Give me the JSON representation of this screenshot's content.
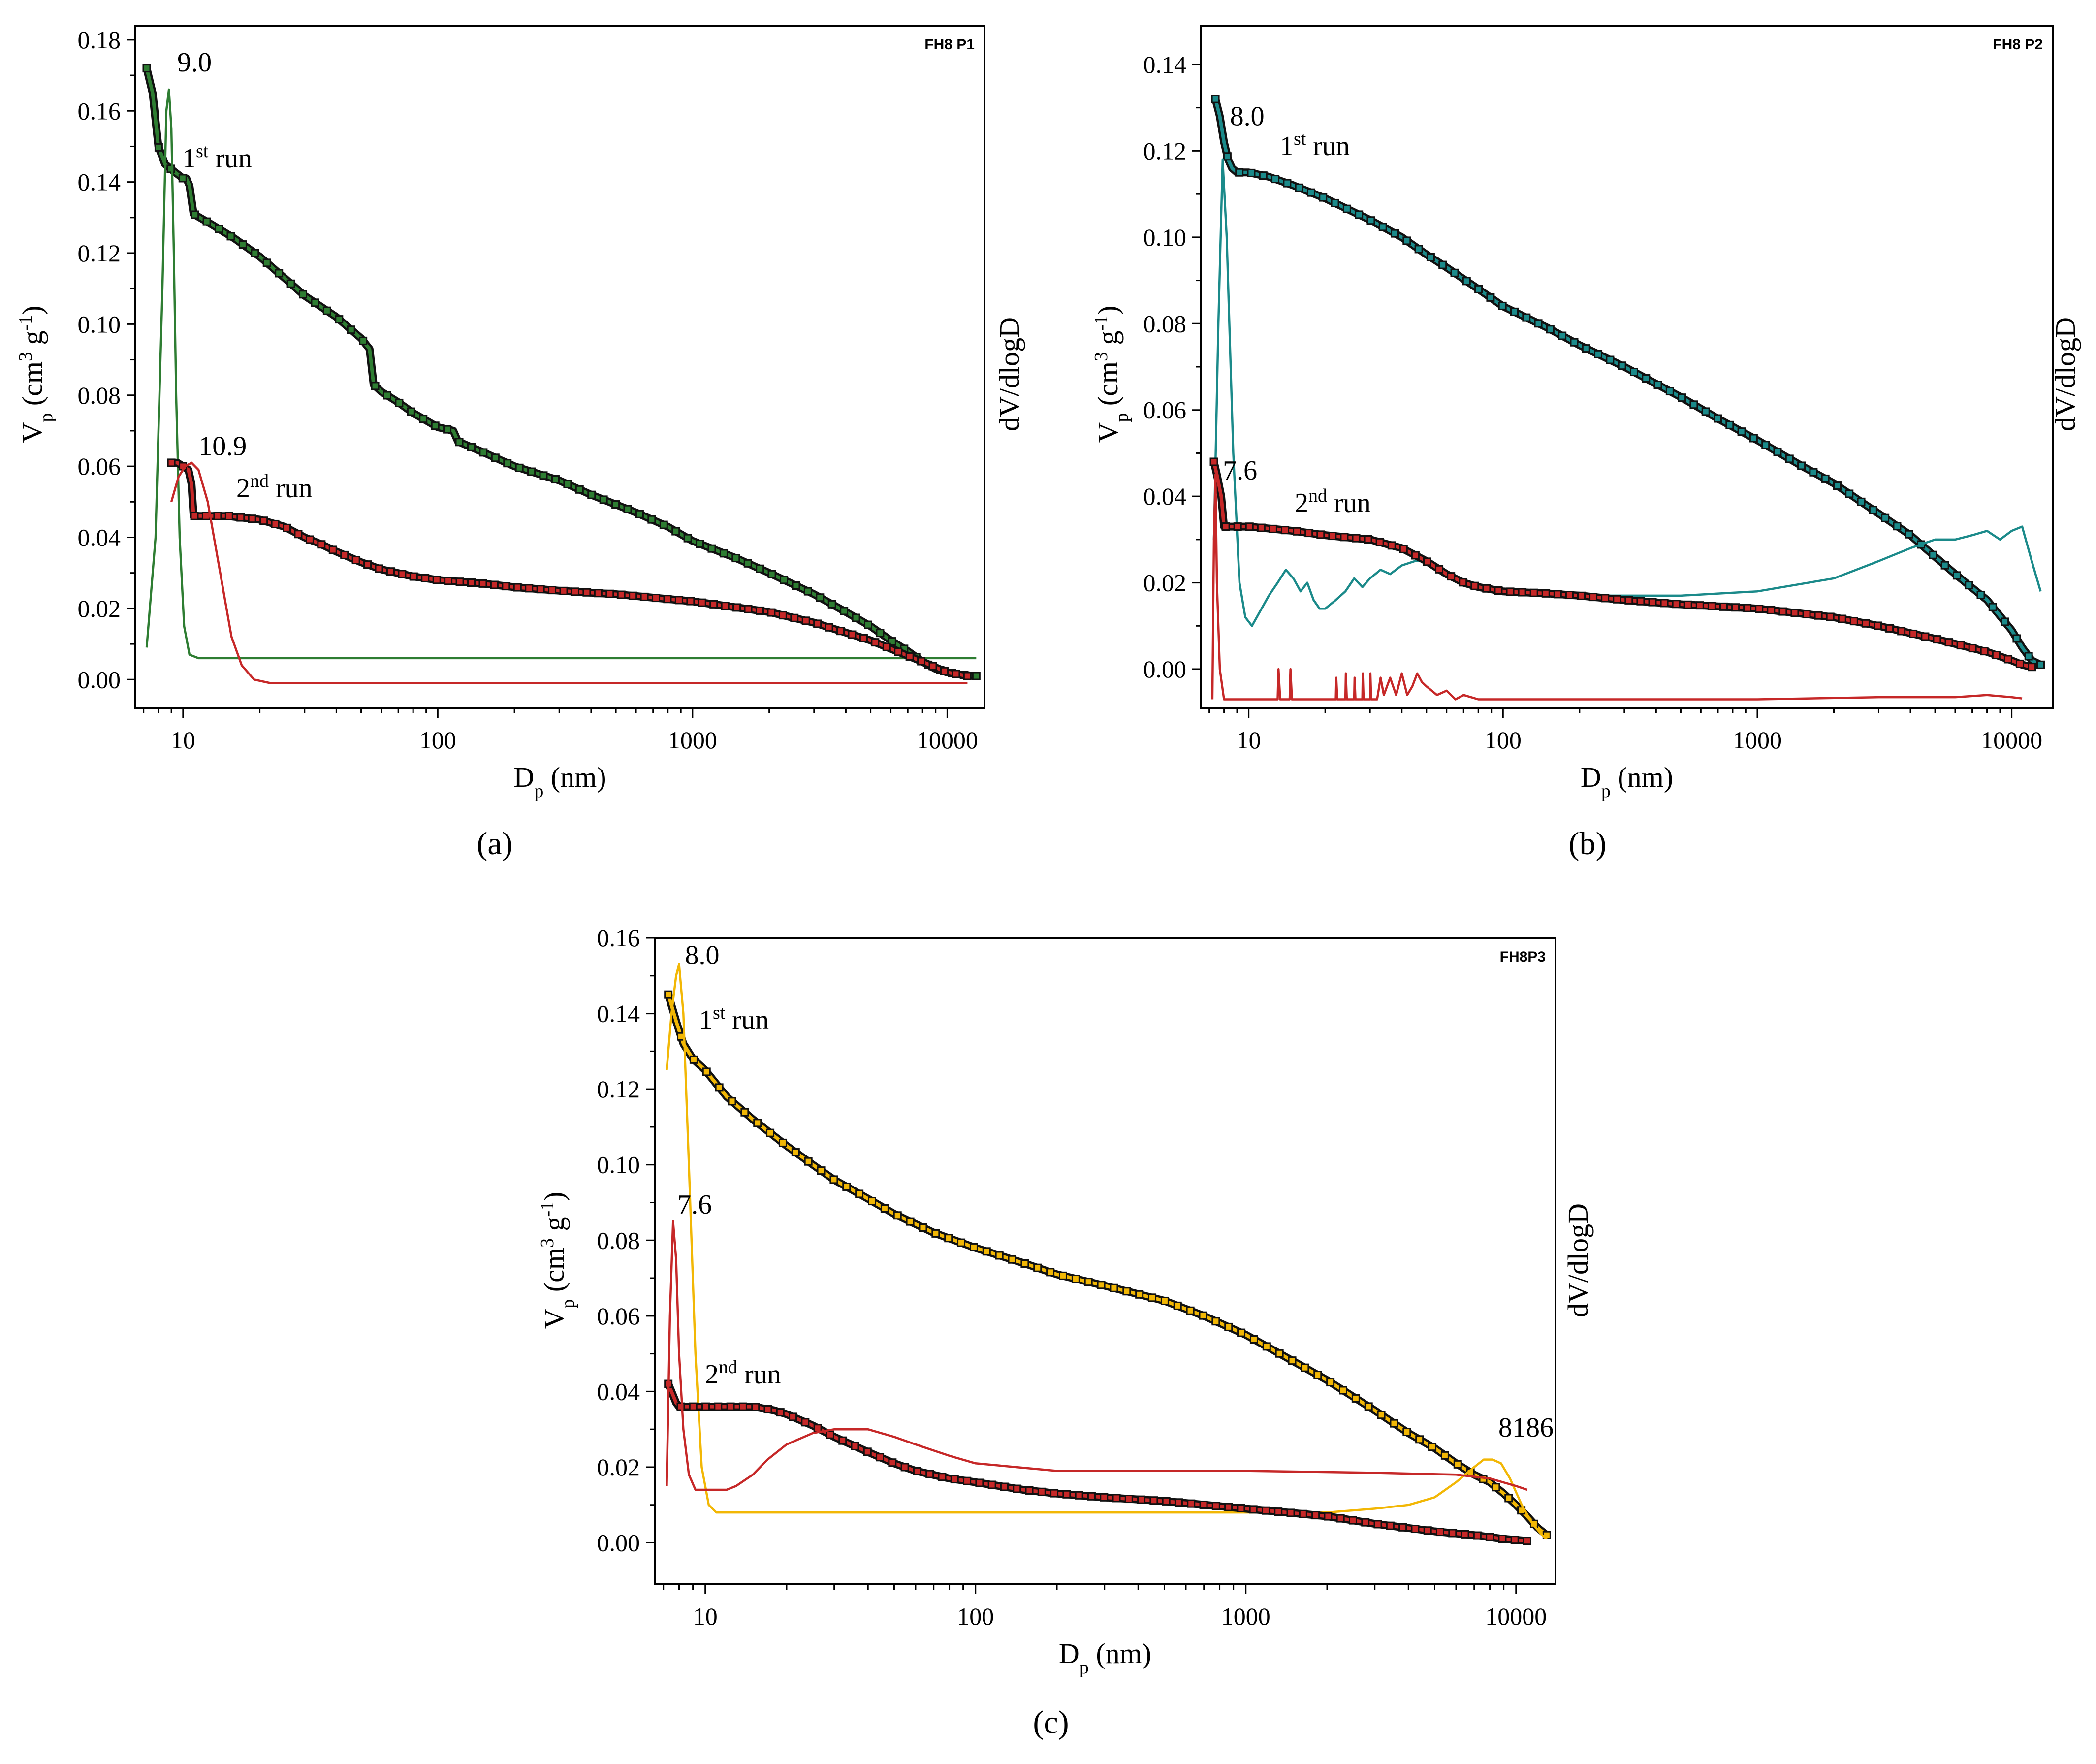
{
  "colors": {
    "p1_first": "#2e7d32",
    "p1_second": "#c62828",
    "p2_first": "#1b8a8a",
    "p2_second": "#c62828",
    "p3_first": "#f2b705",
    "p3_second": "#c62828",
    "dark": "#111111"
  },
  "shared": {
    "xlabel_main": "D",
    "xlabel_sub": "p",
    "xlabel_unit": " (nm)",
    "ylabel_main": "V",
    "ylabel_sub": "p",
    "ylabel_unit_pre": " (cm",
    "ylabel_exp1": "3",
    "ylabel_mid": " g",
    "ylabel_exp2": "-1",
    "ylabel_close": ")",
    "y2label": "dV/dlogD",
    "run1_num": "1",
    "run1_sup": "st",
    "run1_word": " run",
    "run2_num": "2",
    "run2_sup": "nd",
    "run2_word": " run",
    "x_tick_labels": [
      "10",
      "100",
      "1000",
      "10000"
    ]
  },
  "chart_data": [
    {
      "type": "line",
      "id": "a",
      "tag": "FH8 P1",
      "caption": "(a)",
      "xscale": "log",
      "xlim": [
        6.5,
        14000
      ],
      "ylim": [
        -0.008,
        0.184
      ],
      "y_ticks": [
        "0.00",
        "0.02",
        "0.04",
        "0.06",
        "0.08",
        "0.10",
        "0.12",
        "0.14",
        "0.16",
        "0.18"
      ],
      "peak_labels": [
        {
          "text": "9.0",
          "x": 9.0,
          "y": 0.17
        },
        {
          "text": "10.9",
          "x": 10.9,
          "y": 0.062
        }
      ],
      "series": [
        {
          "name": "1st run Vp",
          "color_key": "p1_first",
          "markers": true,
          "x": [
            7.2,
            7.6,
            8.0,
            8.5,
            9.2,
            10.0,
            10.3,
            10.6,
            11,
            13,
            16,
            20,
            25,
            30,
            40,
            50,
            54,
            56,
            60,
            70,
            80,
            100,
            115,
            120,
            150,
            200,
            300,
            400,
            600,
            800,
            1000,
            1500,
            2000,
            3000,
            4000,
            5000,
            6000,
            7000,
            8000,
            9000,
            10000,
            11000,
            12000,
            13000
          ],
          "y": [
            0.172,
            0.165,
            0.15,
            0.145,
            0.143,
            0.141,
            0.141,
            0.139,
            0.131,
            0.128,
            0.124,
            0.119,
            0.113,
            0.108,
            0.102,
            0.096,
            0.093,
            0.083,
            0.081,
            0.078,
            0.075,
            0.071,
            0.07,
            0.067,
            0.064,
            0.06,
            0.056,
            0.052,
            0.047,
            0.043,
            0.039,
            0.034,
            0.03,
            0.024,
            0.019,
            0.015,
            0.011,
            0.008,
            0.005,
            0.003,
            0.002,
            0.0015,
            0.0012,
            0.001
          ]
        },
        {
          "name": "1st run dV/dlogD",
          "color_key": "p1_first",
          "markers": false,
          "x": [
            7.2,
            7.8,
            8.3,
            8.6,
            8.8,
            9.0,
            9.2,
            9.4,
            9.7,
            10.1,
            10.6,
            11.5,
            13,
            20,
            100,
            1000,
            10000,
            13000
          ],
          "y": [
            0.009,
            0.04,
            0.11,
            0.16,
            0.166,
            0.155,
            0.12,
            0.08,
            0.04,
            0.015,
            0.007,
            0.006,
            0.006,
            0.006,
            0.006,
            0.006,
            0.006,
            0.006
          ]
        },
        {
          "name": "2nd run Vp",
          "color_key": "p1_second",
          "markers": true,
          "x": [
            9.0,
            9.5,
            10.0,
            10.5,
            10.8,
            11,
            12,
            15,
            20,
            25,
            30,
            35,
            40,
            50,
            60,
            80,
            100,
            150,
            200,
            300,
            500,
            1000,
            2000,
            3000,
            5000,
            8000,
            10000,
            12000
          ],
          "y": [
            0.061,
            0.061,
            0.06,
            0.059,
            0.055,
            0.046,
            0.046,
            0.046,
            0.045,
            0.043,
            0.04,
            0.038,
            0.036,
            0.033,
            0.031,
            0.029,
            0.028,
            0.027,
            0.026,
            0.025,
            0.024,
            0.022,
            0.019,
            0.016,
            0.011,
            0.005,
            0.002,
            0.001
          ]
        },
        {
          "name": "2nd run dV/dlogD",
          "color_key": "p1_second",
          "markers": false,
          "x": [
            9.0,
            9.6,
            10.2,
            10.8,
            11.5,
            12.5,
            14,
            15.5,
            17,
            19,
            22,
            30,
            100,
            1000,
            10000,
            12000
          ],
          "y": [
            0.05,
            0.057,
            0.06,
            0.061,
            0.059,
            0.05,
            0.03,
            0.012,
            0.004,
            0.0,
            -0.001,
            -0.001,
            -0.001,
            -0.001,
            -0.001,
            -0.001
          ]
        }
      ]
    },
    {
      "type": "line",
      "id": "b",
      "tag": "FH8 P2",
      "caption": "(b)",
      "xscale": "log",
      "xlim": [
        6.5,
        14500
      ],
      "ylim": [
        -0.009,
        0.149
      ],
      "y_ticks": [
        "0.00",
        "0.02",
        "0.04",
        "0.06",
        "0.08",
        "0.10",
        "0.12",
        "0.14"
      ],
      "peak_labels": [
        {
          "text": "8.0",
          "x": 8.0,
          "y": 0.125
        },
        {
          "text": "7.6",
          "x": 7.5,
          "y": 0.043
        }
      ],
      "series": [
        {
          "name": "1st run Vp",
          "color_key": "p2_first",
          "markers": true,
          "x": [
            7.4,
            7.7,
            8.0,
            8.3,
            8.6,
            9,
            10,
            12,
            15,
            20,
            30,
            40,
            50,
            60,
            80,
            100,
            150,
            200,
            300,
            500,
            700,
            1000,
            1500,
            2000,
            3000,
            4000,
            5000,
            6000,
            8000,
            10000,
            11000,
            12000,
            13000
          ],
          "y": [
            0.132,
            0.128,
            0.122,
            0.118,
            0.116,
            0.115,
            0.115,
            0.114,
            0.112,
            0.109,
            0.104,
            0.1,
            0.096,
            0.093,
            0.088,
            0.084,
            0.079,
            0.075,
            0.07,
            0.063,
            0.058,
            0.053,
            0.047,
            0.043,
            0.036,
            0.031,
            0.026,
            0.022,
            0.016,
            0.009,
            0.005,
            0.002,
            0.001
          ]
        },
        {
          "name": "1st run dV/dlogD",
          "color_key": "p2_first",
          "markers": false,
          "x": [
            7.3,
            7.6,
            7.9,
            8.2,
            8.7,
            9.2,
            9.7,
            10.3,
            11,
            12,
            13,
            14,
            15,
            16,
            17,
            18,
            19,
            20,
            22,
            24,
            26,
            28,
            30,
            33,
            36,
            40,
            45,
            50,
            60,
            70,
            80,
            100,
            150,
            200,
            300,
            500,
            1000,
            2000,
            3000,
            4000,
            5000,
            6000,
            7000,
            8000,
            9000,
            10000,
            11000,
            12000,
            13000
          ],
          "y": [
            0.03,
            0.08,
            0.118,
            0.1,
            0.05,
            0.02,
            0.012,
            0.01,
            0.013,
            0.017,
            0.02,
            0.023,
            0.021,
            0.018,
            0.02,
            0.016,
            0.014,
            0.014,
            0.016,
            0.018,
            0.021,
            0.019,
            0.021,
            0.023,
            0.022,
            0.024,
            0.025,
            0.025,
            0.022,
            0.02,
            0.019,
            0.018,
            0.017,
            0.017,
            0.017,
            0.017,
            0.018,
            0.021,
            0.025,
            0.028,
            0.03,
            0.03,
            0.031,
            0.032,
            0.03,
            0.032,
            0.033,
            0.025,
            0.018
          ]
        },
        {
          "name": "2nd run Vp",
          "color_key": "p2_second",
          "markers": true,
          "x": [
            7.3,
            7.5,
            7.8,
            8.0,
            8.5,
            10,
            15,
            20,
            30,
            40,
            50,
            60,
            70,
            80,
            100,
            150,
            200,
            300,
            500,
            1000,
            2000,
            3000,
            5000,
            8000,
            10000,
            11000,
            12000
          ],
          "y": [
            0.048,
            0.045,
            0.04,
            0.033,
            0.033,
            0.033,
            0.032,
            0.031,
            0.03,
            0.028,
            0.025,
            0.022,
            0.02,
            0.019,
            0.018,
            0.0175,
            0.017,
            0.016,
            0.015,
            0.014,
            0.012,
            0.01,
            0.007,
            0.004,
            0.002,
            0.001,
            0.0005
          ]
        },
        {
          "name": "2nd run dV/dlogD",
          "color_key": "p2_second",
          "markers": false,
          "x": [
            7.2,
            7.3,
            7.4,
            7.5,
            7.7,
            8.0,
            9,
            10,
            12,
            13,
            13.1,
            13.3,
            13.5,
            14.5,
            14.6,
            14.8,
            15,
            20,
            22,
            22.1,
            22.3,
            22.5,
            24,
            24.1,
            24.3,
            24.5,
            26,
            26.1,
            26.3,
            26.5,
            28,
            28.1,
            28.3,
            28.5,
            30,
            30.1,
            30.3,
            30.5,
            32,
            33,
            34,
            36,
            38,
            40,
            42,
            44,
            46,
            48,
            50,
            55,
            60,
            65,
            70,
            80,
            100,
            200,
            500,
            1000,
            3000,
            6000,
            8000,
            10000,
            11000
          ],
          "y": [
            -0.007,
            0.03,
            0.045,
            0.02,
            0.0,
            -0.007,
            -0.007,
            -0.007,
            -0.007,
            -0.007,
            0.0,
            -0.007,
            -0.007,
            -0.007,
            0.0,
            -0.007,
            -0.007,
            -0.007,
            -0.007,
            -0.002,
            -0.007,
            -0.007,
            -0.007,
            -0.001,
            -0.007,
            -0.007,
            -0.007,
            -0.002,
            -0.007,
            -0.007,
            -0.007,
            -0.001,
            -0.007,
            -0.007,
            -0.007,
            -0.001,
            -0.007,
            -0.007,
            -0.007,
            -0.002,
            -0.006,
            -0.002,
            -0.006,
            -0.001,
            -0.006,
            -0.004,
            -0.001,
            -0.003,
            -0.004,
            -0.006,
            -0.005,
            -0.007,
            -0.006,
            -0.007,
            -0.007,
            -0.007,
            -0.007,
            -0.007,
            -0.0065,
            -0.0065,
            -0.006,
            -0.0065,
            -0.0068
          ]
        }
      ]
    },
    {
      "type": "line",
      "id": "c",
      "tag": "FH8P3",
      "caption": "(c)",
      "xscale": "log",
      "xlim": [
        6.5,
        14000
      ],
      "ylim": [
        -0.011,
        0.16
      ],
      "y_ticks": [
        "0.00",
        "0.02",
        "0.04",
        "0.06",
        "0.08",
        "0.10",
        "0.12",
        "0.14",
        "0.16"
      ],
      "peak_labels": [
        {
          "text": "8.0",
          "x": 8.0,
          "y": 0.152
        },
        {
          "text": "7.6",
          "x": 7.5,
          "y": 0.086
        },
        {
          "text": "8186",
          "x": 8186,
          "y": 0.027
        }
      ],
      "series": [
        {
          "name": "1st run Vp",
          "color_key": "p3_first",
          "markers": true,
          "x": [
            7.3,
            7.8,
            8.3,
            9,
            10,
            12,
            15,
            20,
            25,
            30,
            40,
            50,
            70,
            100,
            150,
            200,
            300,
            500,
            700,
            1000,
            1500,
            2000,
            3000,
            4000,
            5000,
            6000,
            7000,
            8000,
            9000,
            10000,
            11000,
            12000,
            13000
          ],
          "y": [
            0.145,
            0.138,
            0.132,
            0.128,
            0.125,
            0.118,
            0.112,
            0.105,
            0.1,
            0.096,
            0.091,
            0.087,
            0.082,
            0.078,
            0.074,
            0.071,
            0.068,
            0.064,
            0.06,
            0.055,
            0.048,
            0.043,
            0.035,
            0.029,
            0.025,
            0.021,
            0.018,
            0.016,
            0.013,
            0.01,
            0.007,
            0.004,
            0.002
          ]
        },
        {
          "name": "1st run dV/dlogD",
          "color_key": "p3_first",
          "markers": false,
          "x": [
            7.2,
            7.5,
            7.8,
            8.0,
            8.3,
            8.7,
            9.2,
            9.7,
            10.3,
            11,
            15,
            50,
            100,
            500,
            1000,
            2000,
            3000,
            4000,
            5000,
            6000,
            7000,
            7600,
            8186,
            8800,
            9500,
            10500,
            11500,
            12500,
            13000
          ],
          "y": [
            0.125,
            0.14,
            0.15,
            0.153,
            0.14,
            0.1,
            0.05,
            0.02,
            0.01,
            0.008,
            0.008,
            0.008,
            0.008,
            0.008,
            0.008,
            0.008,
            0.009,
            0.01,
            0.012,
            0.016,
            0.02,
            0.022,
            0.022,
            0.021,
            0.017,
            0.01,
            0.005,
            0.002,
            0.001
          ]
        },
        {
          "name": "2nd run Vp",
          "color_key": "p3_second",
          "markers": true,
          "x": [
            7.3,
            7.5,
            7.8,
            8.0,
            8.5,
            10,
            15,
            18,
            20,
            25,
            30,
            40,
            50,
            60,
            80,
            100,
            150,
            200,
            300,
            500,
            1000,
            2000,
            3000,
            5000,
            7000,
            9000,
            11000
          ],
          "y": [
            0.042,
            0.04,
            0.037,
            0.036,
            0.036,
            0.036,
            0.036,
            0.035,
            0.034,
            0.031,
            0.028,
            0.024,
            0.021,
            0.019,
            0.017,
            0.016,
            0.014,
            0.013,
            0.012,
            0.011,
            0.009,
            0.007,
            0.005,
            0.003,
            0.002,
            0.001,
            0.0005
          ]
        },
        {
          "name": "2nd run dV/dlogD",
          "color_key": "p3_second",
          "markers": false,
          "x": [
            7.2,
            7.4,
            7.6,
            7.8,
            8.0,
            8.3,
            8.7,
            9.2,
            10,
            11,
            12,
            13,
            15,
            17,
            20,
            25,
            30,
            40,
            50,
            60,
            80,
            100,
            200,
            500,
            1000,
            3000,
            6000,
            8000,
            10000,
            11000
          ],
          "y": [
            0.015,
            0.06,
            0.085,
            0.075,
            0.05,
            0.03,
            0.018,
            0.014,
            0.014,
            0.014,
            0.014,
            0.015,
            0.018,
            0.022,
            0.026,
            0.029,
            0.03,
            0.03,
            0.028,
            0.026,
            0.023,
            0.021,
            0.019,
            0.019,
            0.019,
            0.0185,
            0.018,
            0.017,
            0.015,
            0.014
          ]
        }
      ]
    }
  ]
}
